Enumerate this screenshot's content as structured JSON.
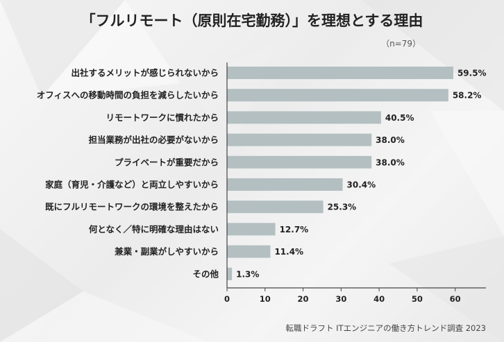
{
  "chart_data": {
    "type": "bar",
    "orientation": "horizontal",
    "title": "「フルリモート（原則在宅勤務）」を理想とする理由",
    "sample_size": "（n=79）",
    "categories": [
      "出社するメリットが感じられないから",
      "オフィスへの移動時間の負担を減らしたいから",
      "リモートワークに慣れたから",
      "担当業務が出社の必要がないから",
      "プライベートが重要だから",
      "家庭（育児・介護など）と両立しやすいから",
      "既にフルリモートワークの環境を整えたから",
      "何となく／特に明確な理由はない",
      "兼業・副業がしやすいから",
      "その他"
    ],
    "values": [
      59.5,
      58.2,
      40.5,
      38.0,
      38.0,
      30.4,
      25.3,
      12.7,
      11.4,
      1.3
    ],
    "value_labels": [
      "59.5%",
      "58.2%",
      "40.5%",
      "38.0%",
      "38.0%",
      "30.4%",
      "25.3%",
      "12.7%",
      "11.4%",
      "1.3%"
    ],
    "xlim": [
      0,
      65
    ],
    "xticks": [
      0,
      10,
      20,
      30,
      40,
      50,
      60
    ],
    "xlabel": "",
    "ylabel": "",
    "bar_color": "#b3bfc1",
    "axis_color": "#444444",
    "grid": false,
    "source": "転職ドラフト ITエンジニアの働き方トレンド調査 2023"
  }
}
